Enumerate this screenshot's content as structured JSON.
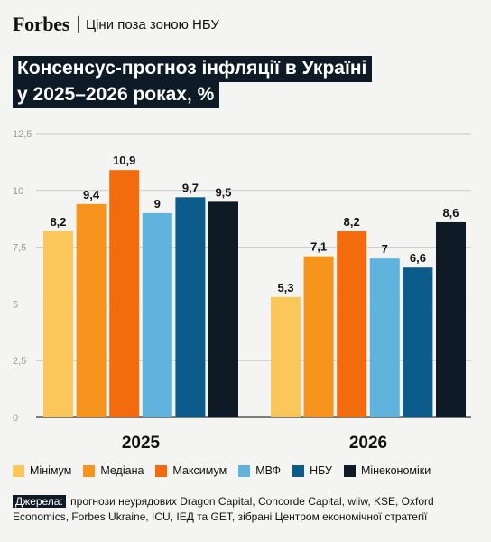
{
  "header": {
    "brand": "Forbes",
    "section": "Ціни поза зоною НБУ"
  },
  "title": {
    "line1": "Консенсус-прогноз інфляції в Україні",
    "line2": "у 2025–2026 роках, %"
  },
  "chart_data": {
    "type": "bar",
    "categories": [
      "2025",
      "2026"
    ],
    "series": [
      {
        "name": "Мінімум",
        "color": "#fcc75a",
        "values": [
          8.2,
          5.3
        ],
        "labels": [
          "8,2",
          "5,3"
        ]
      },
      {
        "name": "Медіана",
        "color": "#f7941d",
        "values": [
          9.4,
          7.1
        ],
        "labels": [
          "9,4",
          "7,1"
        ]
      },
      {
        "name": "Максимум",
        "color": "#f26c0d",
        "values": [
          10.9,
          8.2
        ],
        "labels": [
          "10,9",
          "8,2"
        ]
      },
      {
        "name": "МВФ",
        "color": "#5fb3dd",
        "values": [
          9,
          7
        ],
        "labels": [
          "9",
          "7"
        ]
      },
      {
        "name": "НБУ",
        "color": "#0b5c8a",
        "values": [
          9.7,
          6.6
        ],
        "labels": [
          "9,7",
          "6,6"
        ]
      },
      {
        "name": "Мінекономіки",
        "color": "#0e1b26",
        "values": [
          9.5,
          8.6
        ],
        "labels": [
          "9,5",
          "8,6"
        ]
      }
    ],
    "ylim": [
      0,
      12.5
    ],
    "yticks": [
      0,
      2.5,
      5,
      7.5,
      10,
      12.5
    ],
    "ytick_labels": [
      "0",
      "2,5",
      "5",
      "7,5",
      "10",
      "12,5"
    ],
    "grid": true,
    "legend": "bottom"
  },
  "sources": {
    "label": "Джерела:",
    "text": "прогнози неурядових Dragon Capital, Concorde Capital, wiiw, KSE, Oxford Economics, Forbes Ukraine, ICU, ІЕД та GET, зібрані Центром економічної стратегії"
  }
}
